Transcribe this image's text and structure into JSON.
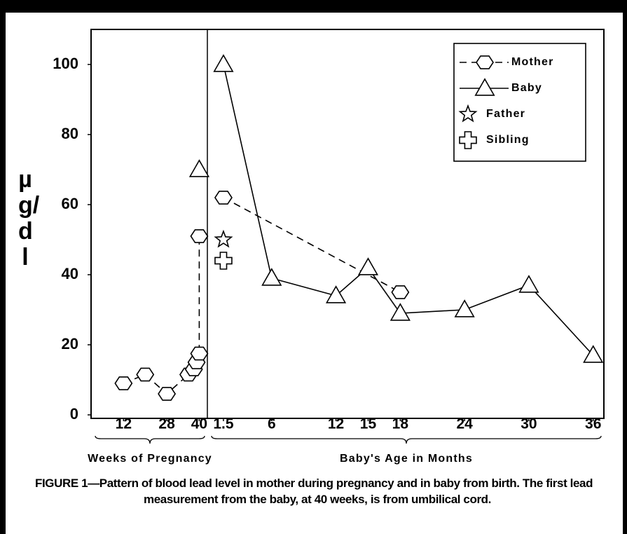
{
  "chart_data": [
    {
      "type": "line",
      "xlabel": "Weeks of Pregnancy",
      "ylabel": "µg/dl",
      "xlim": [
        0,
        43
      ],
      "xticks": [
        12,
        28,
        40
      ],
      "ylim": [
        -1,
        110
      ],
      "yticks": [
        0,
        20,
        40,
        60,
        80,
        100
      ],
      "series": [
        {
          "marker": "hexagon",
          "linestyle": "dashed",
          "color": "#000000",
          "x": [
            12,
            20,
            28,
            36,
            38,
            39,
            40,
            40
          ],
          "values": [
            9,
            11.5,
            6,
            11.5,
            13,
            15,
            17.5,
            51
          ]
        },
        {
          "marker": "triangle",
          "linestyle": "none",
          "color": "#000000",
          "x": [
            40
          ],
          "values": [
            70
          ]
        }
      ]
    },
    {
      "type": "line",
      "xlabel": "Baby's Age in Months",
      "xlim": [
        0,
        37
      ],
      "xticks": [
        1.5,
        6,
        12,
        15,
        18,
        24,
        30,
        36
      ],
      "ylim": [
        -1,
        110
      ],
      "legend": "upper right",
      "series": [
        {
          "name": "Mother",
          "marker": "hexagon",
          "linestyle": "dashed",
          "color": "#000000",
          "x": [
            1.5,
            18
          ],
          "values": [
            62,
            35
          ]
        },
        {
          "name": "Baby",
          "marker": "triangle",
          "linestyle": "solid",
          "color": "#000000",
          "x": [
            1.5,
            6,
            12,
            15,
            18,
            24,
            30,
            36
          ],
          "values": [
            100,
            39,
            34,
            42,
            29,
            30,
            37,
            17
          ]
        },
        {
          "name": "Father",
          "marker": "star",
          "linestyle": "none",
          "color": "#000000",
          "x": [
            1.5
          ],
          "values": [
            50
          ]
        },
        {
          "name": "Sibling",
          "marker": "cross",
          "linestyle": "none",
          "color": "#000000",
          "x": [
            1.5
          ],
          "values": [
            44
          ]
        }
      ]
    }
  ],
  "caption": "FIGURE 1—Pattern of blood lead level in mother during pregnancy and in baby from birth. The first lead measurement from the baby, at 40 weeks, is from umbilical cord."
}
